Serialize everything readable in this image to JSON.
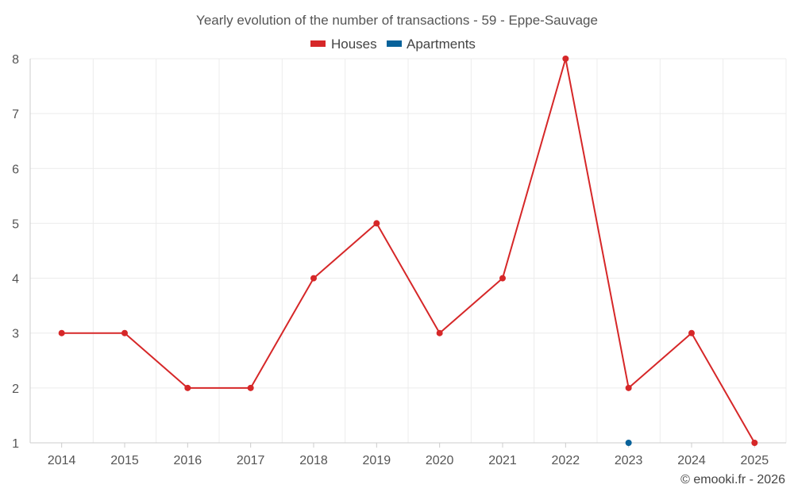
{
  "chart_data": {
    "type": "line",
    "title": "Yearly evolution of the number of transactions - 59 - Eppe-Sauvage",
    "categories": [
      "2014",
      "2015",
      "2016",
      "2017",
      "2018",
      "2019",
      "2020",
      "2021",
      "2022",
      "2023",
      "2024",
      "2025"
    ],
    "series": [
      {
        "name": "Houses",
        "color": "#d62728",
        "values": [
          3,
          3,
          2,
          2,
          4,
          5,
          3,
          4,
          8,
          2,
          3,
          1
        ]
      },
      {
        "name": "Apartments",
        "color": "#08629a",
        "values": [
          null,
          null,
          null,
          null,
          null,
          null,
          null,
          null,
          null,
          1,
          null,
          null
        ]
      }
    ],
    "ylim": [
      1,
      8
    ],
    "yticks": [
      1,
      2,
      3,
      4,
      5,
      6,
      7,
      8
    ],
    "xlabel": "",
    "ylabel": "",
    "grid": true,
    "legend_position": "top-center"
  },
  "credit": "© emooki.fr - 2026"
}
